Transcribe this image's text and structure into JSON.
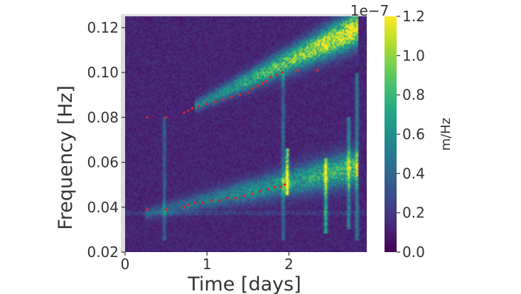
{
  "chart_data": {
    "type": "heatmap",
    "title": "",
    "xlabel": "Time [days]",
    "ylabel": "Frequency [Hz]",
    "xlim": [
      0,
      2.95
    ],
    "ylim": [
      0.02,
      0.125
    ],
    "x_ticks": [
      {
        "value": 0,
        "label": "0"
      },
      {
        "value": 1,
        "label": "1"
      },
      {
        "value": 2,
        "label": "2"
      }
    ],
    "y_ticks": [
      {
        "value": 0.02,
        "label": "0.02"
      },
      {
        "value": 0.04,
        "label": "0.04"
      },
      {
        "value": 0.06,
        "label": "0.06"
      },
      {
        "value": 0.08,
        "label": "0.08"
      },
      {
        "value": 0.1,
        "label": "0.10"
      },
      {
        "value": 0.12,
        "label": "0.12"
      }
    ],
    "colorbar": {
      "label": "m/Hz",
      "offset_text": "1e−7",
      "colormap": "viridis",
      "range": [
        0.0,
        1.2
      ],
      "ticks": [
        {
          "value": 0.0,
          "label": "0.0"
        },
        {
          "value": 0.2,
          "label": "0.2"
        },
        {
          "value": 0.4,
          "label": "0.4"
        },
        {
          "value": 0.6,
          "label": "0.6"
        },
        {
          "value": 0.8,
          "label": "0.8"
        },
        {
          "value": 1.0,
          "label": "1.0"
        },
        {
          "value": 1.2,
          "label": "1.2"
        }
      ]
    },
    "background_level": 0.12,
    "ridges": [
      {
        "name": "upper",
        "x_start": 0.85,
        "y_start": 0.085,
        "x_end": 2.85,
        "y_end": 0.12,
        "peak": 1.2
      },
      {
        "name": "lower",
        "x_start": 0.25,
        "y_start": 0.037,
        "x_end": 2.85,
        "y_end": 0.058,
        "peak": 0.75
      }
    ],
    "vertical_features": [
      {
        "x": 0.48,
        "y_from": 0.025,
        "y_to": 0.08,
        "intensity": 0.35
      },
      {
        "x": 1.93,
        "y_from": 0.025,
        "y_to": 0.1,
        "intensity": 0.4
      },
      {
        "x": 1.98,
        "y_from": 0.045,
        "y_to": 0.066,
        "intensity": 1.2
      },
      {
        "x": 2.45,
        "y_from": 0.028,
        "y_to": 0.062,
        "intensity": 0.9
      },
      {
        "x": 2.73,
        "y_from": 0.03,
        "y_to": 0.08,
        "intensity": 0.6
      },
      {
        "x": 2.83,
        "y_from": 0.025,
        "y_to": 0.1,
        "intensity": 0.5
      }
    ],
    "markers": {
      "color": "#d62728",
      "series": [
        {
          "points": [
            [
              0.27,
              0.08
            ],
            [
              0.5,
              0.08
            ],
            [
              0.72,
              0.082
            ],
            [
              0.77,
              0.083
            ],
            [
              0.82,
              0.084
            ],
            [
              0.9,
              0.085
            ],
            [
              1.0,
              0.086
            ],
            [
              1.1,
              0.087
            ],
            [
              1.2,
              0.088
            ],
            [
              1.3,
              0.089
            ],
            [
              1.4,
              0.09
            ],
            [
              1.5,
              0.091
            ],
            [
              1.55,
              0.093
            ],
            [
              1.62,
              0.094
            ],
            [
              1.68,
              0.095
            ],
            [
              1.72,
              0.096
            ],
            [
              1.78,
              0.098
            ],
            [
              1.85,
              0.099
            ],
            [
              1.92,
              0.1
            ],
            [
              2.1,
              0.101
            ],
            [
              2.35,
              0.101
            ]
          ]
        },
        {
          "points": [
            [
              0.27,
              0.039
            ],
            [
              0.5,
              0.039
            ],
            [
              0.72,
              0.04
            ],
            [
              0.78,
              0.041
            ],
            [
              0.85,
              0.042
            ],
            [
              0.95,
              0.042
            ],
            [
              1.05,
              0.043
            ],
            [
              1.15,
              0.043
            ],
            [
              1.25,
              0.044
            ],
            [
              1.35,
              0.044
            ],
            [
              1.45,
              0.045
            ],
            [
              1.55,
              0.046
            ],
            [
              1.65,
              0.047
            ],
            [
              1.75,
              0.048
            ],
            [
              1.82,
              0.049
            ],
            [
              1.9,
              0.049
            ],
            [
              1.95,
              0.05
            ]
          ]
        }
      ]
    }
  }
}
